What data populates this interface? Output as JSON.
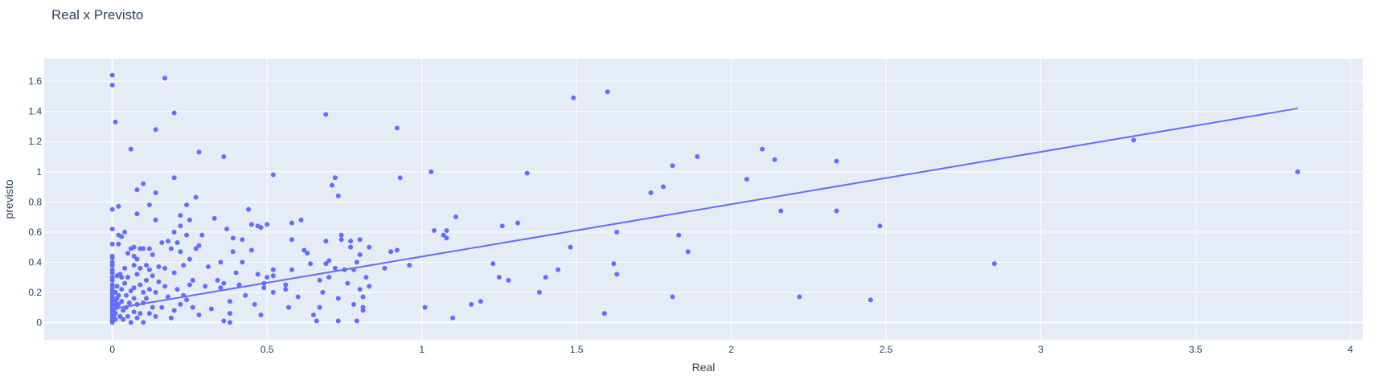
{
  "chart_data": {
    "type": "scatter",
    "title": "Real x Previsto",
    "xlabel": "Real",
    "ylabel": "previsto",
    "xlim": [
      -0.22,
      4.04
    ],
    "ylim": [
      -0.115,
      1.75
    ],
    "grid": true,
    "x_ticks": [
      0,
      0.5,
      1,
      1.5,
      2,
      2.5,
      3,
      3.5,
      4
    ],
    "x_tick_labels": [
      "0",
      "0.5",
      "1",
      "1.5",
      "2",
      "2.5",
      "3",
      "3.5",
      "4"
    ],
    "y_ticks": [
      0,
      0.2,
      0.4,
      0.6,
      0.8,
      1,
      1.2,
      1.4,
      1.6
    ],
    "y_tick_labels": [
      "0",
      "0.2",
      "0.4",
      "0.6",
      "0.8",
      "1",
      "1.2",
      "1.4",
      "1.6"
    ],
    "colors": {
      "marker": "#636efa",
      "line": "#636efa",
      "plot_bg": "#e5ecf6",
      "grid": "#ffffff"
    },
    "trend_line": {
      "x": [
        0,
        3.83
      ],
      "y": [
        0.09,
        1.42
      ]
    },
    "points": [
      [
        0,
        1.64
      ],
      [
        0,
        1.575
      ],
      [
        0.01,
        1.33
      ],
      [
        0,
        0.75
      ],
      [
        0.02,
        0.77
      ],
      [
        0,
        0.62
      ],
      [
        0,
        0.52
      ],
      [
        0,
        0.44
      ],
      [
        0,
        0.43
      ],
      [
        0,
        0.4
      ],
      [
        0,
        0.38
      ],
      [
        0,
        0.35
      ],
      [
        0,
        0.33
      ],
      [
        0,
        0.3
      ],
      [
        0,
        0.28
      ],
      [
        0,
        0.25
      ],
      [
        0,
        0.23
      ],
      [
        0,
        0.21
      ],
      [
        0,
        0.19
      ],
      [
        0,
        0.17
      ],
      [
        0,
        0.15
      ],
      [
        0,
        0.13
      ],
      [
        0,
        0.11
      ],
      [
        0,
        0.09
      ],
      [
        0,
        0.07
      ],
      [
        0,
        0.05
      ],
      [
        0,
        0.03
      ],
      [
        0,
        0.01
      ],
      [
        0,
        0.0
      ],
      [
        0.005,
        0.12
      ],
      [
        0.005,
        0.08
      ],
      [
        0.005,
        0.04
      ],
      [
        0.01,
        0.2
      ],
      [
        0.01,
        0.14
      ],
      [
        0.01,
        0.06
      ],
      [
        0.01,
        0.02
      ],
      [
        0.015,
        0.31
      ],
      [
        0.015,
        0.24
      ],
      [
        0.015,
        0.16
      ],
      [
        0.015,
        0.1
      ],
      [
        0.02,
        0.58
      ],
      [
        0.02,
        0.52
      ],
      [
        0.02,
        0.18
      ],
      [
        0.02,
        0.12
      ],
      [
        0.025,
        0.32
      ],
      [
        0.025,
        0.04
      ],
      [
        0.03,
        0.57
      ],
      [
        0.03,
        0.3
      ],
      [
        0.03,
        0.22
      ],
      [
        0.03,
        0.14
      ],
      [
        0.035,
        0.08
      ],
      [
        0.035,
        0.02
      ],
      [
        0.04,
        0.6
      ],
      [
        0.04,
        0.36
      ],
      [
        0.04,
        0.26
      ],
      [
        0.045,
        0.18
      ],
      [
        0.045,
        0.1
      ],
      [
        0.05,
        0.46
      ],
      [
        0.05,
        0.3
      ],
      [
        0.05,
        0.04
      ],
      [
        0.055,
        0.13
      ],
      [
        0.06,
        0.49
      ],
      [
        0.06,
        0.21
      ],
      [
        0.06,
        0.0
      ],
      [
        0.07,
        0.5
      ],
      [
        0.07,
        0.44
      ],
      [
        0.07,
        0.38
      ],
      [
        0.07,
        0.23
      ],
      [
        0.07,
        0.16
      ],
      [
        0.07,
        0.07
      ],
      [
        0.08,
        0.42
      ],
      [
        0.08,
        0.32
      ],
      [
        0.08,
        0.12
      ],
      [
        0.08,
        0.03
      ],
      [
        0.09,
        0.49
      ],
      [
        0.09,
        0.36
      ],
      [
        0.09,
        0.25
      ],
      [
        0.09,
        0.06
      ],
      [
        0.1,
        0.49
      ],
      [
        0.1,
        0.2
      ],
      [
        0.1,
        0.13
      ],
      [
        0.1,
        0.0
      ],
      [
        0.11,
        0.38
      ],
      [
        0.11,
        0.28
      ],
      [
        0.11,
        0.16
      ],
      [
        0.12,
        0.49
      ],
      [
        0.12,
        0.35
      ],
      [
        0.12,
        0.22
      ],
      [
        0.12,
        0.06
      ],
      [
        0.13,
        0.45
      ],
      [
        0.13,
        0.31
      ],
      [
        0.13,
        0.1
      ],
      [
        0.14,
        0.2
      ],
      [
        0.14,
        0.04
      ],
      [
        0.15,
        0.37
      ],
      [
        0.15,
        0.27
      ],
      [
        0.16,
        0.1
      ],
      [
        0.06,
        1.15
      ],
      [
        0.14,
        1.28
      ],
      [
        0.17,
        1.62
      ],
      [
        0.2,
        1.39
      ],
      [
        0.08,
        0.88
      ],
      [
        0.1,
        0.92
      ],
      [
        0.14,
        0.86
      ],
      [
        0.2,
        0.96
      ],
      [
        0.28,
        1.13
      ],
      [
        0.36,
        1.1
      ],
      [
        0.08,
        0.72
      ],
      [
        0.14,
        0.68
      ],
      [
        0.12,
        0.78
      ],
      [
        0.22,
        0.71
      ],
      [
        0.24,
        0.78
      ],
      [
        0.27,
        0.83
      ],
      [
        0.22,
        0.64
      ],
      [
        0.25,
        0.68
      ],
      [
        0.16,
        0.53
      ],
      [
        0.17,
        0.36
      ],
      [
        0.18,
        0.54
      ],
      [
        0.19,
        0.49
      ],
      [
        0.2,
        0.6
      ],
      [
        0.2,
        0.33
      ],
      [
        0.21,
        0.53
      ],
      [
        0.22,
        0.47
      ],
      [
        0.23,
        0.38
      ],
      [
        0.24,
        0.58
      ],
      [
        0.25,
        0.42
      ],
      [
        0.26,
        0.28
      ],
      [
        0.27,
        0.49
      ],
      [
        0.28,
        0.51
      ],
      [
        0.29,
        0.58
      ],
      [
        0.22,
        0.12
      ],
      [
        0.24,
        0.15
      ],
      [
        0.26,
        0.1
      ],
      [
        0.28,
        0.05
      ],
      [
        0.3,
        0.24
      ],
      [
        0.18,
        0.17
      ],
      [
        0.19,
        0.03
      ],
      [
        0.2,
        0.08
      ],
      [
        0.21,
        0.22
      ],
      [
        0.17,
        0.24
      ],
      [
        0.23,
        0.18
      ],
      [
        0.25,
        0.25
      ],
      [
        0.31,
        0.37
      ],
      [
        0.32,
        0.09
      ],
      [
        0.33,
        0.69
      ],
      [
        0.34,
        0.28
      ],
      [
        0.35,
        0.4
      ],
      [
        0.36,
        0.26
      ],
      [
        0.37,
        0.62
      ],
      [
        0.38,
        0.14
      ],
      [
        0.38,
        0.0
      ],
      [
        0.39,
        0.56
      ],
      [
        0.4,
        0.33
      ],
      [
        0.41,
        0.25
      ],
      [
        0.42,
        0.4
      ],
      [
        0.43,
        0.18
      ],
      [
        0.44,
        0.75
      ],
      [
        0.45,
        0.65
      ],
      [
        0.46,
        0.12
      ],
      [
        0.47,
        0.64
      ],
      [
        0.48,
        0.63
      ],
      [
        0.48,
        0.05
      ],
      [
        0.49,
        0.23
      ],
      [
        0.5,
        0.3
      ],
      [
        0.5,
        0.65
      ],
      [
        0.52,
        0.35
      ],
      [
        0.52,
        0.31
      ],
      [
        0.52,
        0.2
      ],
      [
        0.52,
        0.98
      ],
      [
        0.35,
        0.23
      ],
      [
        0.36,
        0.01
      ],
      [
        0.38,
        0.06
      ],
      [
        0.39,
        0.47
      ],
      [
        0.42,
        0.55
      ],
      [
        0.45,
        0.48
      ],
      [
        0.47,
        0.32
      ],
      [
        0.49,
        0.26
      ],
      [
        0.56,
        0.25
      ],
      [
        0.57,
        0.1
      ],
      [
        0.58,
        0.35
      ],
      [
        0.58,
        0.55
      ],
      [
        0.58,
        0.66
      ],
      [
        0.6,
        0.17
      ],
      [
        0.61,
        0.68
      ],
      [
        0.62,
        0.48
      ],
      [
        0.63,
        0.46
      ],
      [
        0.64,
        0.39
      ],
      [
        0.65,
        0.05
      ],
      [
        0.66,
        0.01
      ],
      [
        0.67,
        0.28
      ],
      [
        0.67,
        0.1
      ],
      [
        0.68,
        0.2
      ],
      [
        0.69,
        0.39
      ],
      [
        0.69,
        0.54
      ],
      [
        0.7,
        0.41
      ],
      [
        0.7,
        0.3
      ],
      [
        0.71,
        0.91
      ],
      [
        0.72,
        0.96
      ],
      [
        0.73,
        0.84
      ],
      [
        0.72,
        0.36
      ],
      [
        0.73,
        0.16
      ],
      [
        0.73,
        0.01
      ],
      [
        0.74,
        0.58
      ],
      [
        0.74,
        0.55
      ],
      [
        0.75,
        0.35
      ],
      [
        0.76,
        0.26
      ],
      [
        0.77,
        0.5
      ],
      [
        0.77,
        0.54
      ],
      [
        0.78,
        0.35
      ],
      [
        0.78,
        0.12
      ],
      [
        0.79,
        0.4
      ],
      [
        0.79,
        0.01
      ],
      [
        0.8,
        0.55
      ],
      [
        0.8,
        0.45
      ],
      [
        0.8,
        0.22
      ],
      [
        0.81,
        0.17
      ],
      [
        0.81,
        0.1
      ],
      [
        0.81,
        0.08
      ],
      [
        0.82,
        0.3
      ],
      [
        0.83,
        0.5
      ],
      [
        0.83,
        0.24
      ],
      [
        0.69,
        1.38
      ],
      [
        0.56,
        0.22
      ],
      [
        0.88,
        0.36
      ],
      [
        0.9,
        0.47
      ],
      [
        0.92,
        0.48
      ],
      [
        0.92,
        1.29
      ],
      [
        0.93,
        0.96
      ],
      [
        0.96,
        0.38
      ],
      [
        1.01,
        0.1
      ],
      [
        1.03,
        1.0
      ],
      [
        1.04,
        0.61
      ],
      [
        1.07,
        0.58
      ],
      [
        1.08,
        0.56
      ],
      [
        1.08,
        0.61
      ],
      [
        1.11,
        0.7
      ],
      [
        1.1,
        0.03
      ],
      [
        1.16,
        0.12
      ],
      [
        1.19,
        0.14
      ],
      [
        1.23,
        0.39
      ],
      [
        1.25,
        0.3
      ],
      [
        1.26,
        0.64
      ],
      [
        1.28,
        0.28
      ],
      [
        1.31,
        0.66
      ],
      [
        1.34,
        0.99
      ],
      [
        1.38,
        0.2
      ],
      [
        1.4,
        0.3
      ],
      [
        1.44,
        0.35
      ],
      [
        1.48,
        0.5
      ],
      [
        1.49,
        1.49
      ],
      [
        1.59,
        0.06
      ],
      [
        1.6,
        1.53
      ],
      [
        1.62,
        0.39
      ],
      [
        1.63,
        0.32
      ],
      [
        1.63,
        0.6
      ],
      [
        1.74,
        0.86
      ],
      [
        1.78,
        0.9
      ],
      [
        1.81,
        0.17
      ],
      [
        1.81,
        1.04
      ],
      [
        1.83,
        0.58
      ],
      [
        1.86,
        0.47
      ],
      [
        1.89,
        1.1
      ],
      [
        2.05,
        0.95
      ],
      [
        2.1,
        1.15
      ],
      [
        2.14,
        1.08
      ],
      [
        2.16,
        0.74
      ],
      [
        2.22,
        0.17
      ],
      [
        2.34,
        1.07
      ],
      [
        2.34,
        0.74
      ],
      [
        2.45,
        0.15
      ],
      [
        2.48,
        0.64
      ],
      [
        2.85,
        0.39
      ],
      [
        3.3,
        1.21
      ],
      [
        3.83,
        1.0
      ]
    ]
  }
}
